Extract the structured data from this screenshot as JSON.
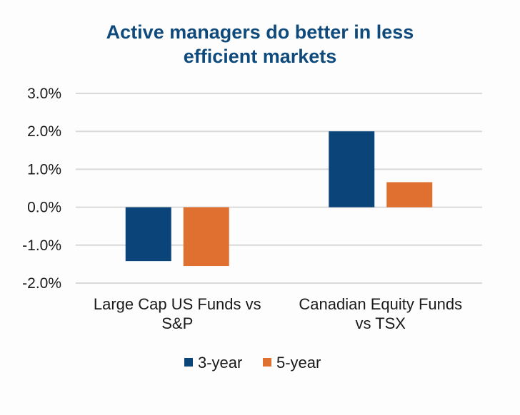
{
  "chart_data": {
    "type": "bar",
    "title": "Active managers do better in less efficient markets",
    "title_lines": [
      "Active managers do better in less",
      "efficient markets"
    ],
    "categories": [
      "Large Cap US Funds vs S&P",
      "Canadian Equity Funds vs TSX"
    ],
    "category_lines": [
      [
        "Large Cap US Funds vs",
        "S&P"
      ],
      [
        "Canadian Equity Funds",
        "vs TSX"
      ]
    ],
    "series": [
      {
        "name": "3-year",
        "color": "#0b4479",
        "values": [
          -1.42,
          2.0
        ]
      },
      {
        "name": "5-year",
        "color": "#e07030",
        "values": [
          -1.55,
          0.66
        ]
      }
    ],
    "xlabel": "",
    "ylabel": "",
    "ylim": [
      -2.0,
      3.0
    ],
    "yticks": [
      3.0,
      2.0,
      1.0,
      0.0,
      -1.0,
      -2.0
    ],
    "ytick_labels": [
      "3.0%",
      "2.0%",
      "1.0%",
      "0.0%",
      "-1.0%",
      "-2.0%"
    ],
    "grid": true,
    "gridline_color": "#d9d9d9",
    "legend_position": "bottom",
    "unit": "%"
  }
}
